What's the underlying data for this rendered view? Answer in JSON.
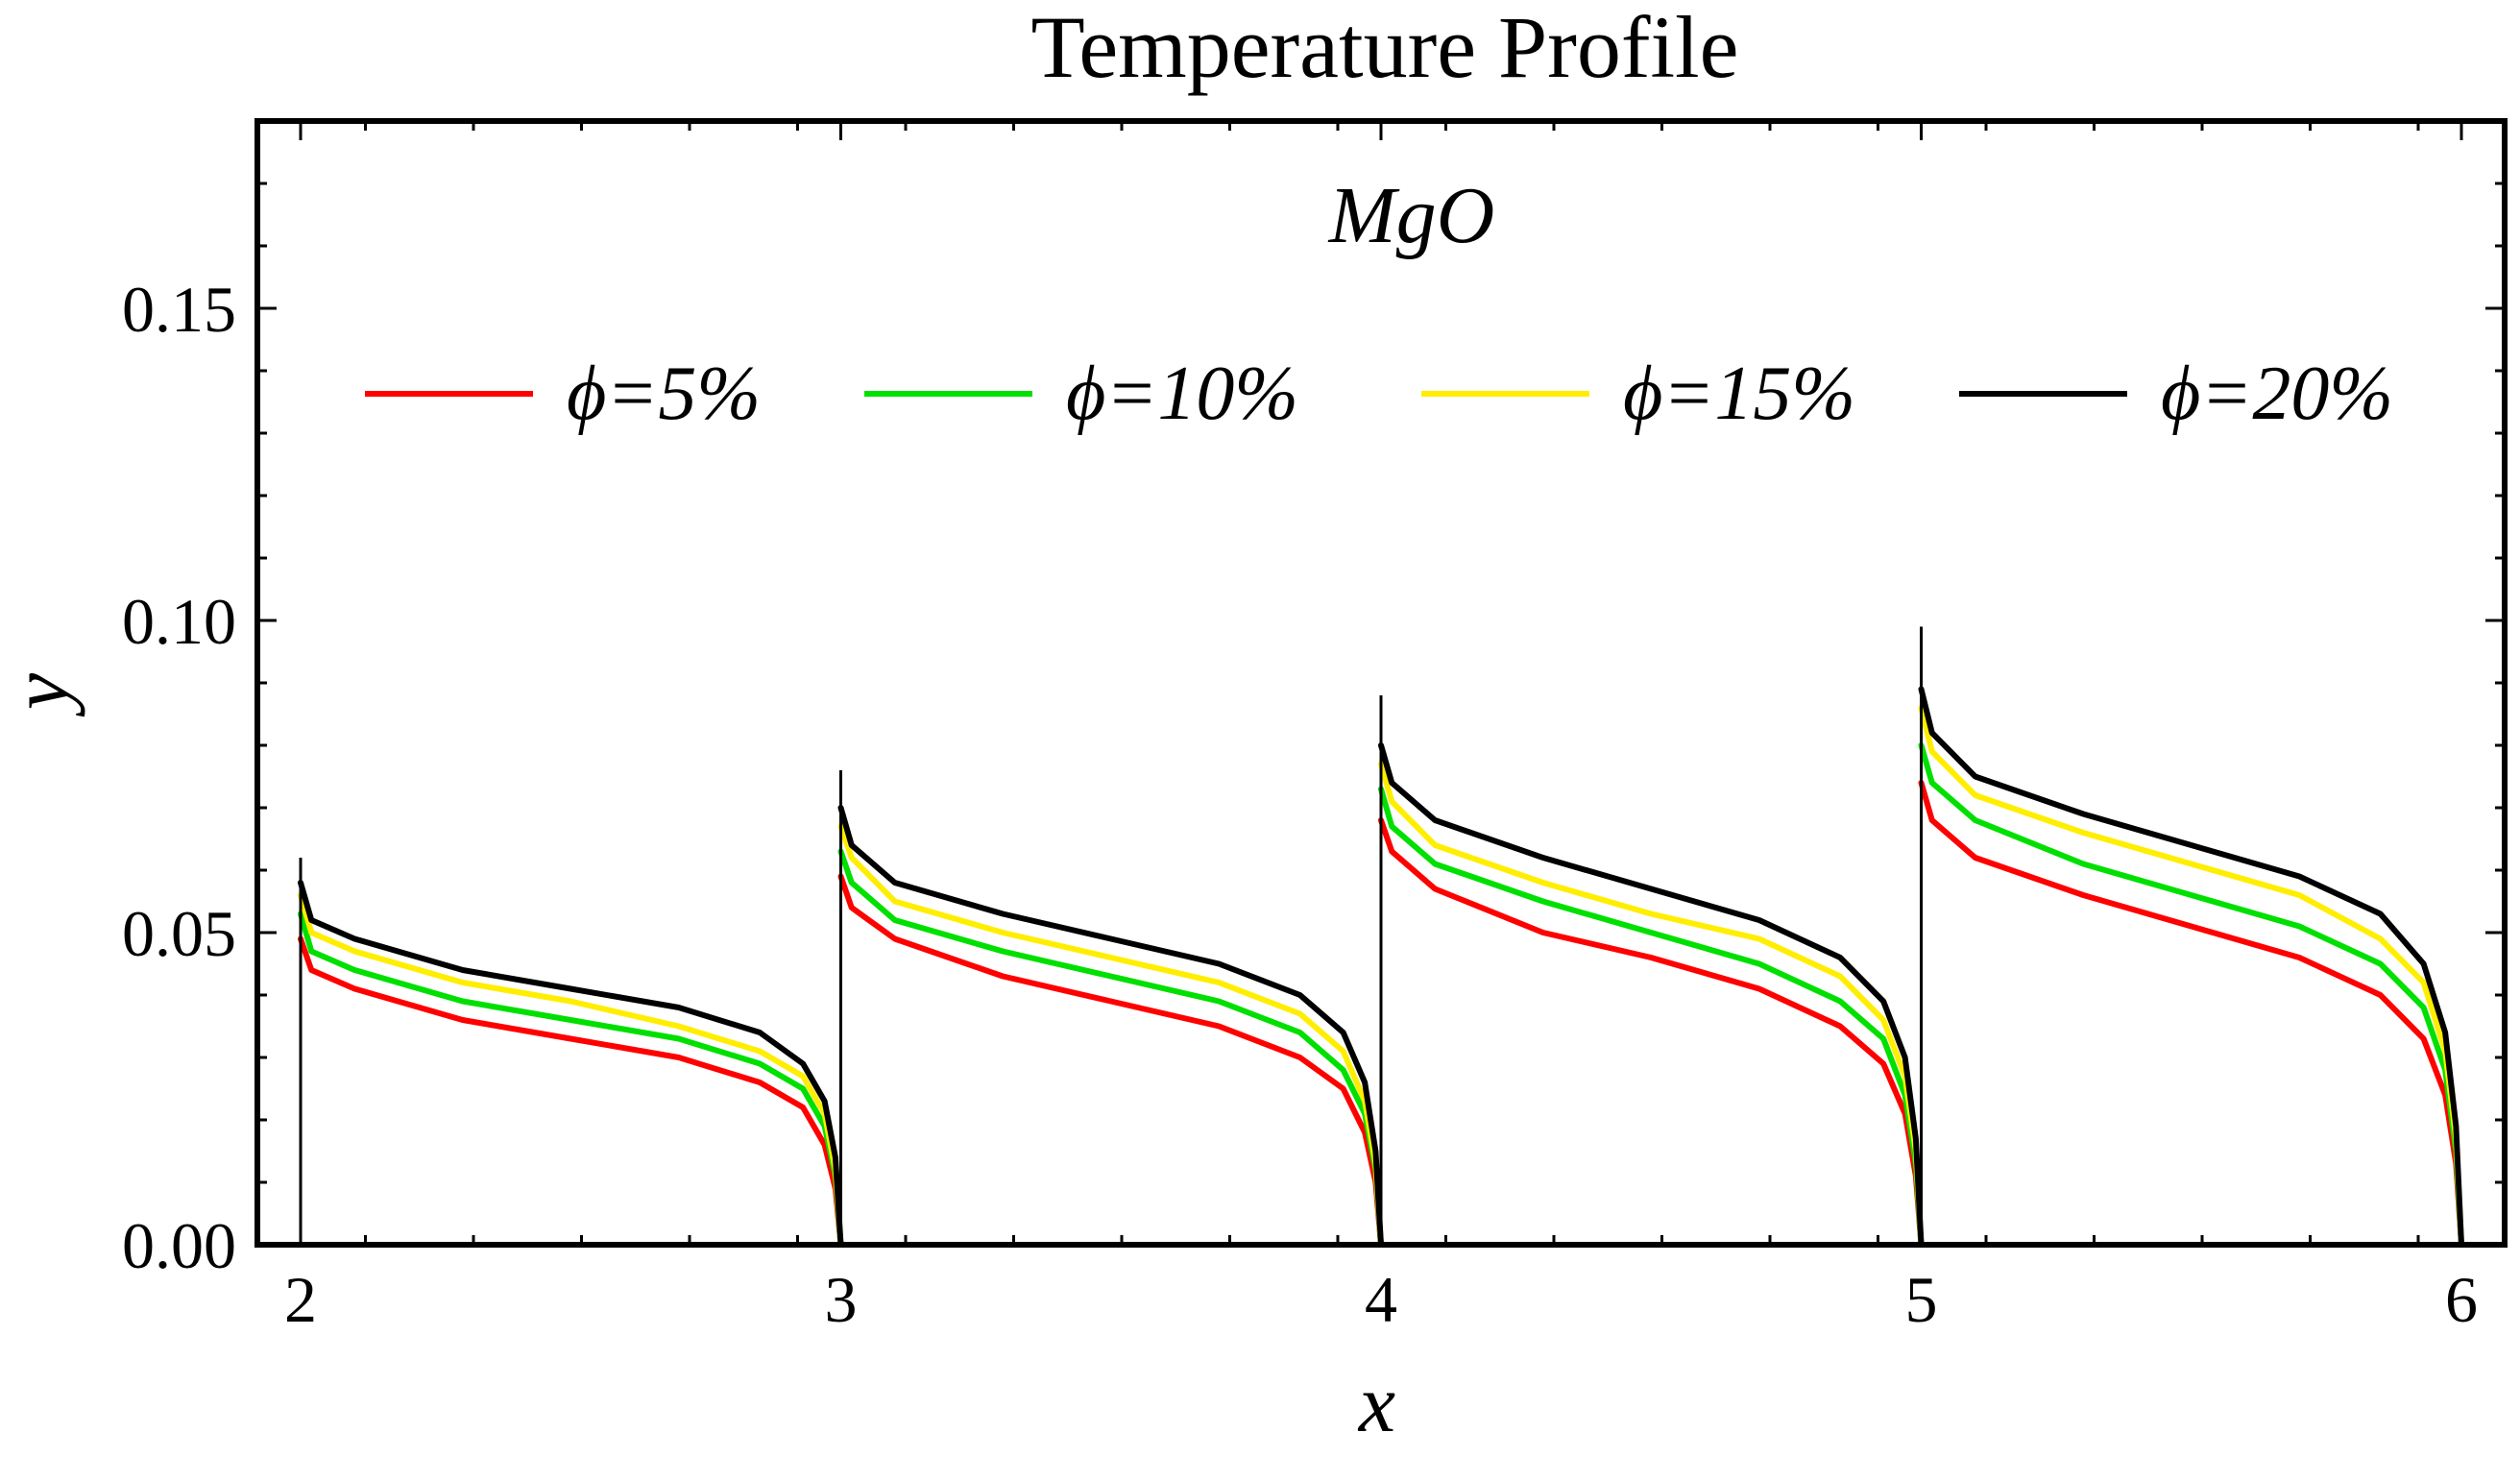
{
  "chart_data": {
    "type": "line",
    "title": "Temperature Profile",
    "xlabel": "x",
    "ylabel": "y",
    "annotation": "MgO",
    "xlim": [
      1.92,
      6.08
    ],
    "ylim": [
      0,
      0.18
    ],
    "xticks": [
      2,
      3,
      4,
      5,
      6
    ],
    "xtick_labels": [
      "2",
      "3",
      "4",
      "5",
      "6"
    ],
    "yticks": [
      0,
      0.05,
      0.1,
      0.15
    ],
    "ytick_labels": [
      "0.00",
      "0.05",
      "0.10",
      "0.15"
    ],
    "x_minor_step": 0.2,
    "y_minor_step": 0.01,
    "legend_position": "top",
    "segments": [
      {
        "x_start": 2,
        "x_end": 3,
        "spike": 0.062
      },
      {
        "x_start": 3,
        "x_end": 4,
        "spike": 0.076
      },
      {
        "x_start": 4,
        "x_end": 5,
        "spike": 0.088
      },
      {
        "x_start": 5,
        "x_end": 6,
        "spike": 0.099
      }
    ],
    "series": [
      {
        "name": "φ = 5%",
        "label": "ϕ=5%",
        "color": "#ff0000",
        "segments": [
          {
            "x": [
              2.0,
              2.02,
              2.1,
              2.3,
              2.5,
              2.7,
              2.85,
              2.93,
              2.97,
              2.99,
              3.0
            ],
            "y": [
              0.049,
              0.044,
              0.041,
              0.036,
              0.033,
              0.03,
              0.026,
              0.022,
              0.016,
              0.009,
              0.0
            ]
          },
          {
            "x": [
              3.0,
              3.02,
              3.1,
              3.3,
              3.5,
              3.7,
              3.85,
              3.93,
              3.97,
              3.99,
              4.0
            ],
            "y": [
              0.059,
              0.054,
              0.049,
              0.043,
              0.039,
              0.035,
              0.03,
              0.025,
              0.018,
              0.01,
              0.0
            ]
          },
          {
            "x": [
              4.0,
              4.02,
              4.1,
              4.3,
              4.5,
              4.7,
              4.85,
              4.93,
              4.97,
              4.99,
              5.0
            ],
            "y": [
              0.068,
              0.063,
              0.057,
              0.05,
              0.046,
              0.041,
              0.035,
              0.029,
              0.021,
              0.011,
              0.0
            ]
          },
          {
            "x": [
              5.0,
              5.02,
              5.1,
              5.3,
              5.5,
              5.7,
              5.85,
              5.93,
              5.97,
              5.99,
              6.0
            ],
            "y": [
              0.074,
              0.068,
              0.062,
              0.056,
              0.051,
              0.046,
              0.04,
              0.033,
              0.024,
              0.013,
              0.0
            ]
          }
        ]
      },
      {
        "name": "φ = 10%",
        "label": "ϕ=10%",
        "color": "#00e000",
        "segments": [
          {
            "x": [
              2.0,
              2.02,
              2.1,
              2.3,
              2.5,
              2.7,
              2.85,
              2.93,
              2.97,
              2.99,
              3.0
            ],
            "y": [
              0.053,
              0.047,
              0.044,
              0.039,
              0.036,
              0.033,
              0.029,
              0.025,
              0.019,
              0.011,
              0.0
            ]
          },
          {
            "x": [
              3.0,
              3.02,
              3.1,
              3.3,
              3.5,
              3.7,
              3.85,
              3.93,
              3.97,
              3.99,
              4.0
            ],
            "y": [
              0.063,
              0.058,
              0.052,
              0.047,
              0.043,
              0.039,
              0.034,
              0.028,
              0.021,
              0.012,
              0.0
            ]
          },
          {
            "x": [
              4.0,
              4.02,
              4.1,
              4.3,
              4.5,
              4.7,
              4.85,
              4.93,
              4.97,
              4.99,
              5.0
            ],
            "y": [
              0.073,
              0.067,
              0.061,
              0.055,
              0.05,
              0.045,
              0.039,
              0.033,
              0.024,
              0.013,
              0.0
            ]
          },
          {
            "x": [
              5.0,
              5.02,
              5.1,
              5.3,
              5.5,
              5.7,
              5.85,
              5.93,
              5.97,
              5.99,
              6.0
            ],
            "y": [
              0.08,
              0.074,
              0.068,
              0.061,
              0.056,
              0.051,
              0.045,
              0.038,
              0.028,
              0.015,
              0.0
            ]
          }
        ]
      },
      {
        "name": "φ = 15%",
        "label": "ϕ=15%",
        "color": "#ffee00",
        "segments": [
          {
            "x": [
              2.0,
              2.02,
              2.1,
              2.3,
              2.5,
              2.7,
              2.85,
              2.93,
              2.97,
              2.99,
              3.0
            ],
            "y": [
              0.056,
              0.05,
              0.047,
              0.042,
              0.039,
              0.035,
              0.031,
              0.027,
              0.021,
              0.012,
              0.0
            ]
          },
          {
            "x": [
              3.0,
              3.02,
              3.1,
              3.3,
              3.5,
              3.7,
              3.85,
              3.93,
              3.97,
              3.99,
              4.0
            ],
            "y": [
              0.067,
              0.062,
              0.055,
              0.05,
              0.046,
              0.042,
              0.037,
              0.031,
              0.023,
              0.013,
              0.0
            ]
          },
          {
            "x": [
              4.0,
              4.02,
              4.1,
              4.3,
              4.5,
              4.7,
              4.85,
              4.93,
              4.97,
              4.99,
              5.0
            ],
            "y": [
              0.077,
              0.071,
              0.064,
              0.058,
              0.053,
              0.049,
              0.043,
              0.036,
              0.027,
              0.015,
              0.0
            ]
          },
          {
            "x": [
              5.0,
              5.02,
              5.1,
              5.3,
              5.5,
              5.7,
              5.85,
              5.93,
              5.97,
              5.99,
              6.0
            ],
            "y": [
              0.086,
              0.079,
              0.072,
              0.066,
              0.061,
              0.056,
              0.049,
              0.042,
              0.031,
              0.017,
              0.0
            ]
          }
        ]
      },
      {
        "name": "φ = 20%",
        "label": "ϕ=20%",
        "color": "#000000",
        "segments": [
          {
            "x": [
              2.0,
              2.02,
              2.1,
              2.3,
              2.5,
              2.7,
              2.85,
              2.93,
              2.97,
              2.99,
              3.0
            ],
            "y": [
              0.058,
              0.052,
              0.049,
              0.044,
              0.041,
              0.038,
              0.034,
              0.029,
              0.023,
              0.014,
              0.0
            ]
          },
          {
            "x": [
              3.0,
              3.02,
              3.1,
              3.3,
              3.5,
              3.7,
              3.85,
              3.93,
              3.97,
              3.99,
              4.0
            ],
            "y": [
              0.07,
              0.064,
              0.058,
              0.053,
              0.049,
              0.045,
              0.04,
              0.034,
              0.026,
              0.015,
              0.0
            ]
          },
          {
            "x": [
              4.0,
              4.02,
              4.1,
              4.3,
              4.5,
              4.7,
              4.85,
              4.93,
              4.97,
              4.99,
              5.0
            ],
            "y": [
              0.08,
              0.074,
              0.068,
              0.062,
              0.057,
              0.052,
              0.046,
              0.039,
              0.03,
              0.017,
              0.0
            ]
          },
          {
            "x": [
              5.0,
              5.02,
              5.1,
              5.3,
              5.5,
              5.7,
              5.85,
              5.93,
              5.97,
              5.99,
              6.0
            ],
            "y": [
              0.089,
              0.082,
              0.075,
              0.069,
              0.064,
              0.059,
              0.053,
              0.045,
              0.034,
              0.019,
              0.0
            ]
          }
        ]
      }
    ]
  }
}
